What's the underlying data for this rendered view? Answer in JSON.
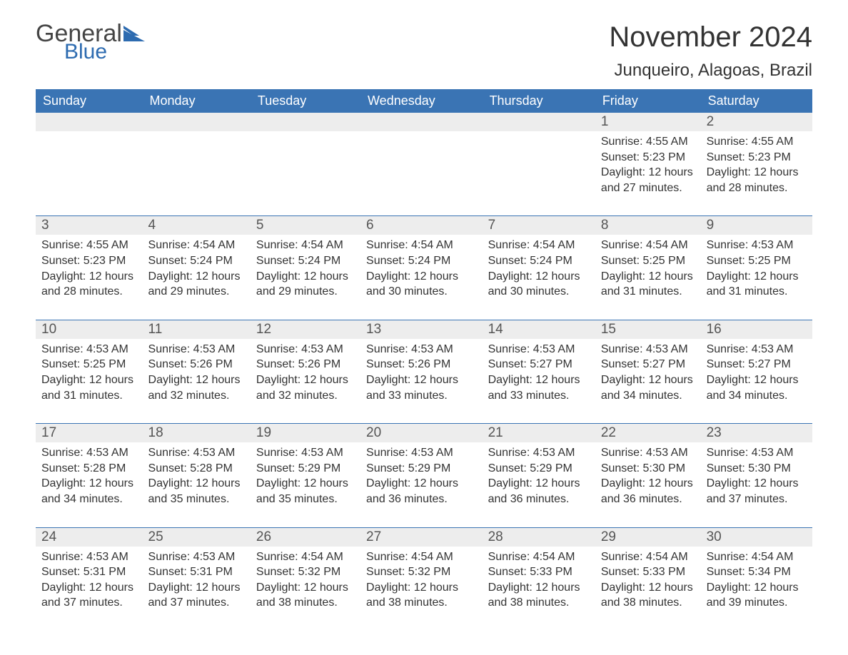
{
  "logo": {
    "text1": "General",
    "text2": "Blue"
  },
  "title": "November 2024",
  "location": "Junqueiro, Alagoas, Brazil",
  "colors": {
    "header_bg": "#3a74b4",
    "header_fg": "#ffffff",
    "daynum_bg": "#ededed",
    "text": "#333333",
    "rule": "#3a74b4",
    "logo_blue": "#2d6bb0"
  },
  "day_headers": [
    "Sunday",
    "Monday",
    "Tuesday",
    "Wednesday",
    "Thursday",
    "Friday",
    "Saturday"
  ],
  "weeks": [
    [
      null,
      null,
      null,
      null,
      null,
      {
        "n": "1",
        "sunrise": "4:55 AM",
        "sunset": "5:23 PM",
        "daylight": "12 hours and 27 minutes."
      },
      {
        "n": "2",
        "sunrise": "4:55 AM",
        "sunset": "5:23 PM",
        "daylight": "12 hours and 28 minutes."
      }
    ],
    [
      {
        "n": "3",
        "sunrise": "4:55 AM",
        "sunset": "5:23 PM",
        "daylight": "12 hours and 28 minutes."
      },
      {
        "n": "4",
        "sunrise": "4:54 AM",
        "sunset": "5:24 PM",
        "daylight": "12 hours and 29 minutes."
      },
      {
        "n": "5",
        "sunrise": "4:54 AM",
        "sunset": "5:24 PM",
        "daylight": "12 hours and 29 minutes."
      },
      {
        "n": "6",
        "sunrise": "4:54 AM",
        "sunset": "5:24 PM",
        "daylight": "12 hours and 30 minutes."
      },
      {
        "n": "7",
        "sunrise": "4:54 AM",
        "sunset": "5:24 PM",
        "daylight": "12 hours and 30 minutes."
      },
      {
        "n": "8",
        "sunrise": "4:54 AM",
        "sunset": "5:25 PM",
        "daylight": "12 hours and 31 minutes."
      },
      {
        "n": "9",
        "sunrise": "4:53 AM",
        "sunset": "5:25 PM",
        "daylight": "12 hours and 31 minutes."
      }
    ],
    [
      {
        "n": "10",
        "sunrise": "4:53 AM",
        "sunset": "5:25 PM",
        "daylight": "12 hours and 31 minutes."
      },
      {
        "n": "11",
        "sunrise": "4:53 AM",
        "sunset": "5:26 PM",
        "daylight": "12 hours and 32 minutes."
      },
      {
        "n": "12",
        "sunrise": "4:53 AM",
        "sunset": "5:26 PM",
        "daylight": "12 hours and 32 minutes."
      },
      {
        "n": "13",
        "sunrise": "4:53 AM",
        "sunset": "5:26 PM",
        "daylight": "12 hours and 33 minutes."
      },
      {
        "n": "14",
        "sunrise": "4:53 AM",
        "sunset": "5:27 PM",
        "daylight": "12 hours and 33 minutes."
      },
      {
        "n": "15",
        "sunrise": "4:53 AM",
        "sunset": "5:27 PM",
        "daylight": "12 hours and 34 minutes."
      },
      {
        "n": "16",
        "sunrise": "4:53 AM",
        "sunset": "5:27 PM",
        "daylight": "12 hours and 34 minutes."
      }
    ],
    [
      {
        "n": "17",
        "sunrise": "4:53 AM",
        "sunset": "5:28 PM",
        "daylight": "12 hours and 34 minutes."
      },
      {
        "n": "18",
        "sunrise": "4:53 AM",
        "sunset": "5:28 PM",
        "daylight": "12 hours and 35 minutes."
      },
      {
        "n": "19",
        "sunrise": "4:53 AM",
        "sunset": "5:29 PM",
        "daylight": "12 hours and 35 minutes."
      },
      {
        "n": "20",
        "sunrise": "4:53 AM",
        "sunset": "5:29 PM",
        "daylight": "12 hours and 36 minutes."
      },
      {
        "n": "21",
        "sunrise": "4:53 AM",
        "sunset": "5:29 PM",
        "daylight": "12 hours and 36 minutes."
      },
      {
        "n": "22",
        "sunrise": "4:53 AM",
        "sunset": "5:30 PM",
        "daylight": "12 hours and 36 minutes."
      },
      {
        "n": "23",
        "sunrise": "4:53 AM",
        "sunset": "5:30 PM",
        "daylight": "12 hours and 37 minutes."
      }
    ],
    [
      {
        "n": "24",
        "sunrise": "4:53 AM",
        "sunset": "5:31 PM",
        "daylight": "12 hours and 37 minutes."
      },
      {
        "n": "25",
        "sunrise": "4:53 AM",
        "sunset": "5:31 PM",
        "daylight": "12 hours and 37 minutes."
      },
      {
        "n": "26",
        "sunrise": "4:54 AM",
        "sunset": "5:32 PM",
        "daylight": "12 hours and 38 minutes."
      },
      {
        "n": "27",
        "sunrise": "4:54 AM",
        "sunset": "5:32 PM",
        "daylight": "12 hours and 38 minutes."
      },
      {
        "n": "28",
        "sunrise": "4:54 AM",
        "sunset": "5:33 PM",
        "daylight": "12 hours and 38 minutes."
      },
      {
        "n": "29",
        "sunrise": "4:54 AM",
        "sunset": "5:33 PM",
        "daylight": "12 hours and 38 minutes."
      },
      {
        "n": "30",
        "sunrise": "4:54 AM",
        "sunset": "5:34 PM",
        "daylight": "12 hours and 39 minutes."
      }
    ]
  ],
  "labels": {
    "sunrise": "Sunrise: ",
    "sunset": "Sunset: ",
    "daylight": "Daylight: "
  }
}
